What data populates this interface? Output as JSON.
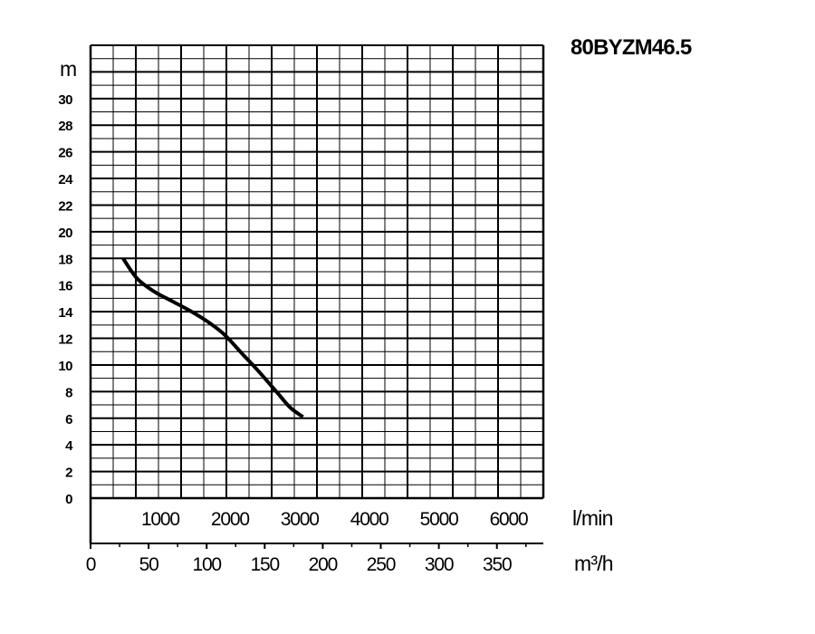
{
  "chart_data": {
    "type": "line",
    "title": "80BYZM46.5",
    "y_unit": "m",
    "x_unit_primary": "l/min",
    "x_unit_secondary": "m³/h",
    "y_ticks": [
      "0",
      "2",
      "4",
      "6",
      "8",
      "10",
      "12",
      "14",
      "16",
      "18",
      "20",
      "22",
      "24",
      "26",
      "28",
      "30"
    ],
    "x_ticks_primary": [
      "1000",
      "2000",
      "3000",
      "4000",
      "5000",
      "6000"
    ],
    "x_ticks_secondary": [
      "0",
      "50",
      "100",
      "150",
      "200",
      "250",
      "300",
      "350"
    ],
    "ylim": [
      0,
      34
    ],
    "xlim_m3h": [
      0,
      390
    ],
    "grid": true,
    "legend": "none",
    "series": [
      {
        "x": [
          28,
          40,
          55,
          70,
          85,
          100,
          115,
          130,
          145,
          160,
          172,
          183
        ],
        "y": [
          18,
          16.5,
          15.5,
          14.8,
          14.1,
          13.3,
          12.3,
          10.9,
          9.5,
          8.0,
          6.8,
          6.1
        ]
      }
    ],
    "line_color": "#000000"
  }
}
